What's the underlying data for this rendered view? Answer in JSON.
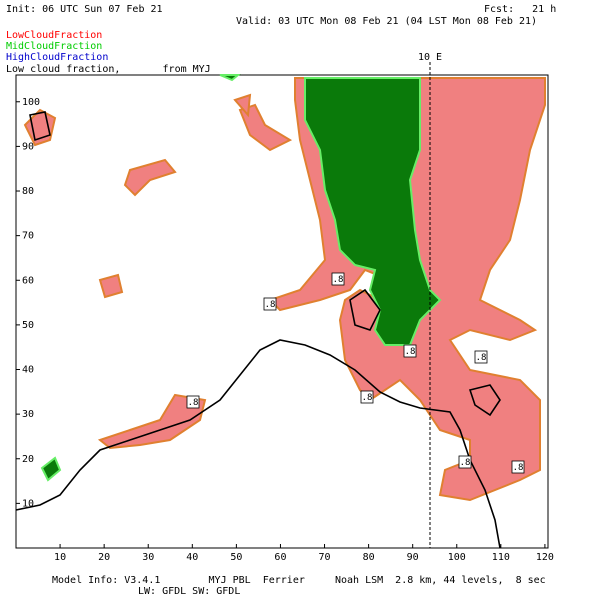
{
  "header": {
    "init": "Init: 06 UTC Sun 07 Feb 21",
    "fcst": "Fcst:   21 h",
    "valid": "Valid: 03 UTC Mon 08 Feb 21 (04 LST Mon 08 Feb 21)"
  },
  "legend": [
    {
      "label": "LowCloudFraction",
      "color": "#ff0000"
    },
    {
      "label": "MidCloudFraction",
      "color": "#00cc00"
    },
    {
      "label": "HighCloudFraction",
      "color": "#0000cc"
    }
  ],
  "subtitle": "Low cloud fraction,       from MYJ",
  "meridian_label": "10 E",
  "contour_label": ".8",
  "axes": {
    "xlim": [
      0,
      120.7
    ],
    "ylim": [
      0,
      106
    ],
    "xticks": [
      10,
      20,
      30,
      40,
      50,
      60,
      70,
      80,
      90,
      100,
      110,
      120
    ],
    "yticks": [
      10,
      20,
      30,
      40,
      50,
      60,
      70,
      80,
      90,
      100
    ]
  },
  "footer": {
    "line1": "Model Info: V3.4.1        MYJ PBL  Ferrier     Noah LSM  2.8 km, 44 levels,  8 sec",
    "line2": "LW: GFDL SW: GFDL"
  }
}
